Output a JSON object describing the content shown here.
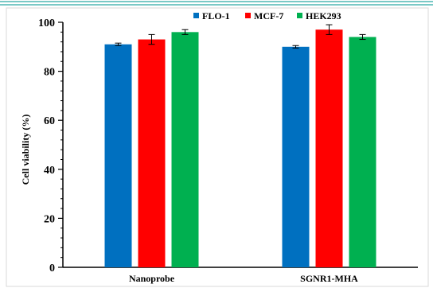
{
  "chart_data": {
    "type": "bar",
    "categories": [
      "Nanoprobe",
      "SGNR1-MHA"
    ],
    "series": [
      {
        "name": "FLO-1",
        "color": "#0070c0",
        "values": [
          91,
          90
        ],
        "errors": [
          0.5,
          0.5
        ]
      },
      {
        "name": "MCF-7",
        "color": "#ff0000",
        "values": [
          93,
          97
        ],
        "errors": [
          2,
          2
        ]
      },
      {
        "name": "HEK293",
        "color": "#00b050",
        "values": [
          96,
          94
        ],
        "errors": [
          1,
          1
        ]
      }
    ],
    "xlabel": "",
    "ylabel": "Cell viability (%)",
    "ylim": [
      0,
      100
    ],
    "yticks": [
      0,
      20,
      40,
      60,
      80,
      100
    ],
    "legend_position": "top-right",
    "grid": false
  },
  "decoration": {
    "top_rule_color": "#2aa9a3"
  }
}
